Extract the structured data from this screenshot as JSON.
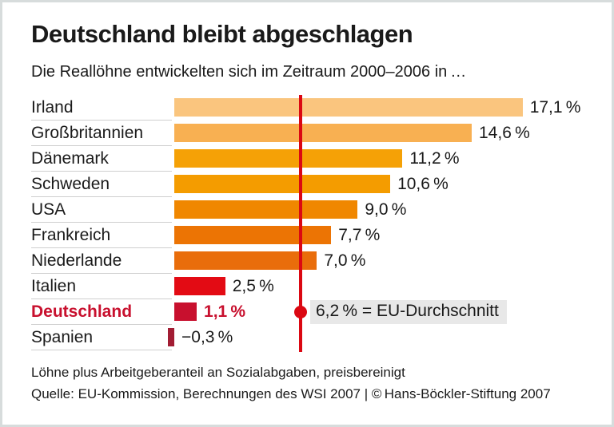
{
  "header": {
    "title": "Deutschland bleibt abgeschlagen",
    "subtitle": "Die Reallöhne entwickelten sich im Zeitraum 2000–2006 in …"
  },
  "chart_data": {
    "type": "bar",
    "orientation": "horizontal",
    "unit": "%",
    "xlim": [
      -0.5,
      20.5
    ],
    "grid": false,
    "legend": "none",
    "title": "Deutschland bleibt abgeschlagen",
    "subtitle": "Die Reallöhne entwickelten sich im Zeitraum 2000–2006 in …",
    "categories": [
      "Irland",
      "Großbritannien",
      "Dänemark",
      "Schweden",
      "USA",
      "Frankreich",
      "Niederlande",
      "Italien",
      "Deutschland",
      "Spanien"
    ],
    "values": [
      17.1,
      14.6,
      11.2,
      10.6,
      9.0,
      7.7,
      7.0,
      2.5,
      1.1,
      -0.3
    ],
    "rows": [
      {
        "label": "Irland",
        "value": 17.1,
        "value_label": "17,1 %",
        "color": "#fac57e",
        "highlight": false
      },
      {
        "label": "Großbritannien",
        "value": 14.6,
        "value_label": "14,6 %",
        "color": "#f8b052",
        "highlight": false
      },
      {
        "label": "Dänemark",
        "value": 11.2,
        "value_label": "11,2 %",
        "color": "#f5a106",
        "highlight": false
      },
      {
        "label": "Schweden",
        "value": 10.6,
        "value_label": "10,6 %",
        "color": "#f49c00",
        "highlight": false
      },
      {
        "label": "USA",
        "value": 9.0,
        "value_label": "9,0 %",
        "color": "#f08700",
        "highlight": false
      },
      {
        "label": "Frankreich",
        "value": 7.7,
        "value_label": "7,7 %",
        "color": "#ec7404",
        "highlight": false
      },
      {
        "label": "Niederlande",
        "value": 7.0,
        "value_label": "7,0 %",
        "color": "#e96d0b",
        "highlight": false
      },
      {
        "label": "Italien",
        "value": 2.5,
        "value_label": "2,5 %",
        "color": "#e30b14",
        "highlight": false
      },
      {
        "label": "Deutschland",
        "value": 1.1,
        "value_label": "1,1 %",
        "color": "#c8102e",
        "highlight": true
      },
      {
        "label": "Spanien",
        "value": -0.3,
        "value_label": "−0,3 %",
        "color": "#a21d33",
        "highlight": false
      }
    ],
    "reference_line": {
      "value": 6.2,
      "label": "6,2 % = EU-Durchschnitt",
      "color": "#db0812"
    },
    "highlight_color": "#c8102e"
  },
  "footer": {
    "note": "Löhne plus Arbeitgeberanteil an Sozialabgaben, preisbereinigt",
    "source": "Quelle: EU-Kommission, Berechnungen des WSI 2007 | © Hans-Böckler-Stiftung 2007"
  }
}
